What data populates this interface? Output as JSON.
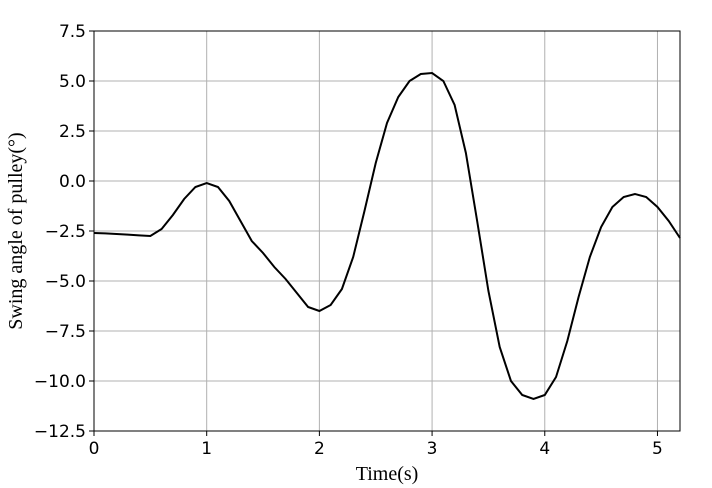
{
  "chart_data": {
    "type": "line",
    "xlabel": "Time(s)",
    "ylabel": "Swing angle of pulley(°)",
    "x": [
      0,
      0.1,
      0.2,
      0.3,
      0.4,
      0.5,
      0.6,
      0.7,
      0.8,
      0.9,
      1.0,
      1.1,
      1.2,
      1.3,
      1.4,
      1.5,
      1.6,
      1.7,
      1.8,
      1.9,
      2.0,
      2.1,
      2.2,
      2.3,
      2.4,
      2.5,
      2.6,
      2.7,
      2.8,
      2.9,
      3.0,
      3.1,
      3.2,
      3.3,
      3.4,
      3.5,
      3.6,
      3.7,
      3.8,
      3.9,
      4.0,
      4.1,
      4.2,
      4.3,
      4.4,
      4.5,
      4.6,
      4.7,
      4.8,
      4.9,
      5.0,
      5.1,
      5.2
    ],
    "series": [
      {
        "color": "#000000",
        "values": [
          -2.6,
          -2.62,
          -2.65,
          -2.68,
          -2.72,
          -2.75,
          -2.4,
          -1.7,
          -0.9,
          -0.3,
          -0.1,
          -0.3,
          -1.0,
          -2.0,
          -3.0,
          -3.6,
          -4.3,
          -4.9,
          -5.6,
          -6.3,
          -6.5,
          -6.2,
          -5.4,
          -3.8,
          -1.5,
          0.9,
          2.9,
          4.2,
          5.0,
          5.35,
          5.4,
          5.0,
          3.8,
          1.4,
          -2.0,
          -5.5,
          -8.3,
          -10.0,
          -10.7,
          -10.9,
          -10.7,
          -9.8,
          -8.0,
          -5.8,
          -3.8,
          -2.3,
          -1.3,
          -0.8,
          -0.65,
          -0.8,
          -1.3,
          -2.0,
          -2.85
        ]
      }
    ],
    "xlim": [
      0,
      5.2
    ],
    "xticks": [
      0,
      1,
      2,
      3,
      4,
      5
    ],
    "ylim": [
      -12.5,
      7.5
    ],
    "yticks": [
      {
        "value": -12.5,
        "label": "−12.5"
      },
      {
        "value": -10,
        "label": "−10.0"
      },
      {
        "value": -7.5,
        "label": "−7.5"
      },
      {
        "value": -5,
        "label": "−5.0"
      },
      {
        "value": -2.5,
        "label": "−2.5"
      },
      {
        "value": 0,
        "label": "0.0"
      },
      2.5,
      {
        "value": 5,
        "label": "5.0"
      },
      7.5
    ],
    "grid": true
  }
}
